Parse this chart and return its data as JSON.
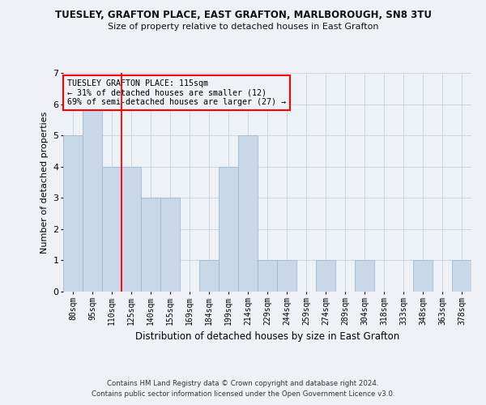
{
  "title_line1": "TUESLEY, GRAFTON PLACE, EAST GRAFTON, MARLBOROUGH, SN8 3TU",
  "title_line2": "Size of property relative to detached houses in East Grafton",
  "xlabel": "Distribution of detached houses by size in East Grafton",
  "ylabel": "Number of detached properties",
  "categories": [
    "80sqm",
    "95sqm",
    "110sqm",
    "125sqm",
    "140sqm",
    "155sqm",
    "169sqm",
    "184sqm",
    "199sqm",
    "214sqm",
    "229sqm",
    "244sqm",
    "259sqm",
    "274sqm",
    "289sqm",
    "304sqm",
    "318sqm",
    "333sqm",
    "348sqm",
    "363sqm",
    "378sqm"
  ],
  "values": [
    5,
    6,
    4,
    4,
    3,
    3,
    0,
    1,
    4,
    5,
    1,
    1,
    0,
    1,
    0,
    1,
    0,
    0,
    1,
    0,
    1
  ],
  "bar_color": "#c8d8e8",
  "bar_edge_color": "#a0b8d0",
  "ylim": [
    0,
    7
  ],
  "yticks": [
    0,
    1,
    2,
    3,
    4,
    5,
    6,
    7
  ],
  "red_line_index": 2.5,
  "annotation_title": "TUESLEY GRAFTON PLACE: 115sqm",
  "annotation_line1": "← 31% of detached houses are smaller (12)",
  "annotation_line2": "69% of semi-detached houses are larger (27) →",
  "footer_line1": "Contains HM Land Registry data © Crown copyright and database right 2024.",
  "footer_line2": "Contains public sector information licensed under the Open Government Licence v3.0.",
  "background_color": "#eef2f7",
  "grid_color": "#ccd6e8"
}
